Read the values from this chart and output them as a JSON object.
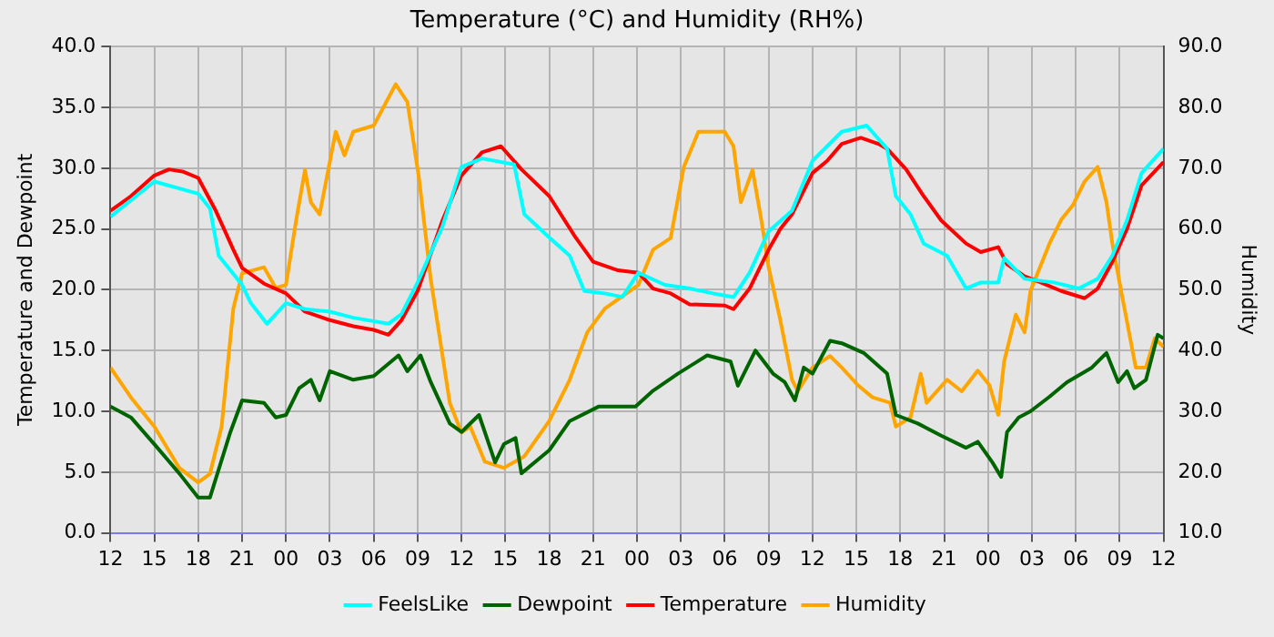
{
  "chart_data": {
    "type": "line",
    "title": "Temperature (°C) and Humidity (RH%)",
    "ylabel": "Temperature and Dewpoint",
    "y2label": "Humidity",
    "xlim": [
      12,
      84
    ],
    "xticks": [
      {
        "value": 12,
        "label": "12"
      },
      {
        "value": 15,
        "label": "15"
      },
      {
        "value": 18,
        "label": "18"
      },
      {
        "value": 21,
        "label": "21"
      },
      {
        "value": 24,
        "label": "00"
      },
      {
        "value": 27,
        "label": "03"
      },
      {
        "value": 30,
        "label": "06"
      },
      {
        "value": 33,
        "label": "09"
      },
      {
        "value": 36,
        "label": "12"
      },
      {
        "value": 39,
        "label": "15"
      },
      {
        "value": 42,
        "label": "18"
      },
      {
        "value": 45,
        "label": "21"
      },
      {
        "value": 48,
        "label": "00"
      },
      {
        "value": 51,
        "label": "03"
      },
      {
        "value": 54,
        "label": "06"
      },
      {
        "value": 57,
        "label": "09"
      },
      {
        "value": 60,
        "label": "12"
      },
      {
        "value": 63,
        "label": "15"
      },
      {
        "value": 66,
        "label": "18"
      },
      {
        "value": 69,
        "label": "21"
      },
      {
        "value": 72,
        "label": "00"
      },
      {
        "value": 75,
        "label": "03"
      },
      {
        "value": 78,
        "label": "06"
      },
      {
        "value": 81,
        "label": "09"
      },
      {
        "value": 84,
        "label": "12"
      }
    ],
    "ylim": [
      0,
      40
    ],
    "yticks": [
      {
        "value": 0,
        "label": "0.0"
      },
      {
        "value": 5,
        "label": "5.0"
      },
      {
        "value": 10,
        "label": "10.0"
      },
      {
        "value": 15,
        "label": "15.0"
      },
      {
        "value": 20,
        "label": "20.0"
      },
      {
        "value": 25,
        "label": "25.0"
      },
      {
        "value": 30,
        "label": "30.0"
      },
      {
        "value": 35,
        "label": "35.0"
      },
      {
        "value": 40,
        "label": "40.0"
      }
    ],
    "y2lim": [
      10,
      90
    ],
    "y2ticks": [
      {
        "value": 10,
        "label": "10.0"
      },
      {
        "value": 20,
        "label": "20.0"
      },
      {
        "value": 30,
        "label": "30.0"
      },
      {
        "value": 40,
        "label": "40.0"
      },
      {
        "value": 50,
        "label": "50.0"
      },
      {
        "value": 60,
        "label": "60.0"
      },
      {
        "value": 70,
        "label": "70.0"
      },
      {
        "value": 80,
        "label": "80.0"
      },
      {
        "value": 90,
        "label": "90.0"
      }
    ],
    "grid": true,
    "legend": "bottom",
    "line_style": "solid",
    "series": [
      {
        "name": "FeelsLike",
        "color": "#00ffff",
        "x": [
          12,
          15,
          18,
          18.8,
          19.4,
          21,
          21.6,
          22.7,
          24,
          25.3,
          27,
          28.6,
          31,
          31.9,
          33,
          34.7,
          36,
          37.4,
          39.6,
          40.3,
          42,
          43.4,
          44.4,
          45.8,
          47,
          48.1,
          49.9,
          51.6,
          53.2,
          54.6,
          55.7,
          57,
          58.6,
          60,
          62,
          63.7,
          65.1,
          65.7,
          66.7,
          67.6,
          69.2,
          70.5,
          71.5,
          72.7,
          73.1,
          74.5,
          76.5,
          78.2,
          79.5,
          80.5,
          81.5,
          82.5,
          84
        ],
        "values": [
          26,
          28.9,
          27.9,
          26.7,
          22.8,
          20.4,
          18.9,
          17.2,
          18.9,
          18.4,
          18.2,
          17.7,
          17.2,
          18,
          20.6,
          25.2,
          30.1,
          30.8,
          30.3,
          26.2,
          24.3,
          22.8,
          19.9,
          19.7,
          19.4,
          21.4,
          20.4,
          20.1,
          19.7,
          19.4,
          21.4,
          24.8,
          26.5,
          30.6,
          33,
          33.5,
          31.6,
          27.7,
          26.2,
          23.8,
          22.8,
          20.1,
          20.6,
          20.6,
          22.6,
          20.9,
          20.6,
          20.1,
          20.9,
          22.8,
          25.7,
          29.6,
          31.6
        ]
      },
      {
        "name": "Dewpoint",
        "color": "#006400",
        "x": [
          12,
          13.4,
          15,
          16.7,
          18,
          18.8,
          20.2,
          21,
          22.5,
          23.3,
          24,
          24.9,
          25.7,
          26.3,
          27,
          28.6,
          30,
          31.7,
          32.3,
          33.2,
          33.9,
          35.2,
          36,
          37.2,
          38.3,
          38.9,
          39.7,
          40.1,
          42,
          43.4,
          45.4,
          47.9,
          49.1,
          50.8,
          52.8,
          54.4,
          54.9,
          56.1,
          57.3,
          58.1,
          58.8,
          59.4,
          60,
          61.2,
          62,
          63.5,
          65.1,
          65.7,
          67.2,
          68.8,
          70.5,
          71.3,
          72.3,
          72.9,
          73.3,
          74.1,
          74.9,
          76.2,
          77.4,
          79.1,
          80.1,
          80.9,
          81.5,
          82,
          82.8,
          83.6,
          84
        ],
        "values": [
          10.4,
          9.5,
          7.3,
          4.9,
          2.9,
          2.9,
          8.3,
          10.9,
          10.7,
          9.5,
          9.7,
          11.9,
          12.6,
          10.9,
          13.3,
          12.6,
          12.9,
          14.6,
          13.3,
          14.6,
          12.4,
          9,
          8.3,
          9.7,
          5.8,
          7.3,
          7.8,
          4.9,
          6.8,
          9.2,
          10.4,
          10.4,
          11.7,
          13.1,
          14.6,
          14.1,
          12.1,
          15,
          13.1,
          12.4,
          10.9,
          13.6,
          13.1,
          15.8,
          15.6,
          14.8,
          13.1,
          9.7,
          9,
          8,
          7,
          7.5,
          5.8,
          4.6,
          8.3,
          9.5,
          10,
          11.2,
          12.4,
          13.6,
          14.8,
          12.4,
          13.3,
          11.9,
          12.6,
          16.3,
          16
        ]
      },
      {
        "name": "Temperature",
        "color": "#ff0000",
        "x": [
          12,
          13.4,
          15,
          16,
          17,
          18,
          19.2,
          20.4,
          21,
          22.5,
          24,
          25.3,
          27,
          28.6,
          30,
          31,
          31.9,
          33,
          34.7,
          36,
          37.4,
          38.7,
          40.1,
          42,
          43.8,
          45,
          46.7,
          48.1,
          49.1,
          50.3,
          51.6,
          54,
          54.6,
          55.7,
          57,
          57.8,
          58.6,
          60,
          61,
          62,
          63.3,
          64.5,
          65.1,
          66.4,
          67.6,
          68.8,
          70.5,
          71.5,
          72.7,
          73.3,
          74.5,
          75.6,
          77,
          78.6,
          79.5,
          80.5,
          81.5,
          82.5,
          84
        ],
        "values": [
          26.5,
          27.7,
          29.4,
          29.9,
          29.7,
          29.2,
          26.5,
          23.3,
          21.8,
          20.5,
          19.7,
          18.2,
          17.5,
          17,
          16.7,
          16.3,
          17.5,
          19.9,
          25.7,
          29.4,
          31.3,
          31.8,
          29.9,
          27.7,
          24.3,
          22.3,
          21.6,
          21.4,
          20.1,
          19.7,
          18.8,
          18.7,
          18.4,
          20.1,
          23.3,
          25,
          26.2,
          29.6,
          30.6,
          32,
          32.5,
          32,
          31.6,
          29.9,
          27.7,
          25.7,
          23.8,
          23.1,
          23.5,
          22.1,
          21.1,
          20.6,
          19.9,
          19.3,
          20.1,
          22.3,
          25,
          28.6,
          30.5
        ]
      },
      {
        "name": "Humidity",
        "color": "#ffa500",
        "axis": "y2",
        "x": [
          12,
          13.4,
          15,
          16.7,
          18,
          18.8,
          19.6,
          20.4,
          21,
          22.5,
          23.3,
          24,
          24.7,
          25.3,
          25.7,
          26.3,
          27.4,
          28,
          28.6,
          30,
          31.5,
          32.3,
          33.1,
          33.9,
          35.2,
          36,
          36.6,
          37.6,
          38.9,
          40.3,
          42,
          43.4,
          44.6,
          45.8,
          48.1,
          49.1,
          50.3,
          51.2,
          52.2,
          54,
          54.6,
          55.1,
          55.9,
          56.5,
          57,
          57.8,
          58.6,
          59,
          60,
          61.2,
          62,
          63.1,
          64.1,
          65.3,
          65.7,
          66.7,
          67.4,
          67.8,
          69.2,
          70.2,
          71.3,
          72.1,
          72.7,
          73.1,
          73.9,
          74.5,
          74.9,
          76.2,
          77,
          77.8,
          78.6,
          79.5,
          80.1,
          80.5,
          81.1,
          82.1,
          82.8,
          83.4,
          84
        ],
        "values": [
          37.2,
          32.3,
          27.5,
          20.7,
          18.3,
          19.7,
          27.5,
          46.9,
          52.7,
          53.7,
          50.3,
          50.8,
          61.5,
          69.7,
          64.4,
          62.4,
          76,
          72.1,
          76,
          77,
          83.8,
          80.9,
          68.3,
          51.7,
          31.4,
          26.5,
          27.5,
          21.7,
          20.7,
          22.6,
          28.4,
          35.2,
          43,
          46.9,
          50.8,
          56.6,
          58.5,
          70.2,
          76,
          76,
          73.6,
          64.4,
          69.7,
          61.5,
          53.7,
          45,
          35.2,
          33.3,
          37.2,
          39.1,
          37.2,
          34.3,
          32.3,
          31.4,
          27.5,
          29,
          36.2,
          31.4,
          35.2,
          33.3,
          36.7,
          34.3,
          29.4,
          38.2,
          45.9,
          43,
          49.8,
          57.6,
          61.5,
          63.9,
          67.8,
          70.2,
          64.4,
          57.6,
          49.8,
          37.2,
          37.2,
          42,
          40.6
        ]
      }
    ]
  }
}
